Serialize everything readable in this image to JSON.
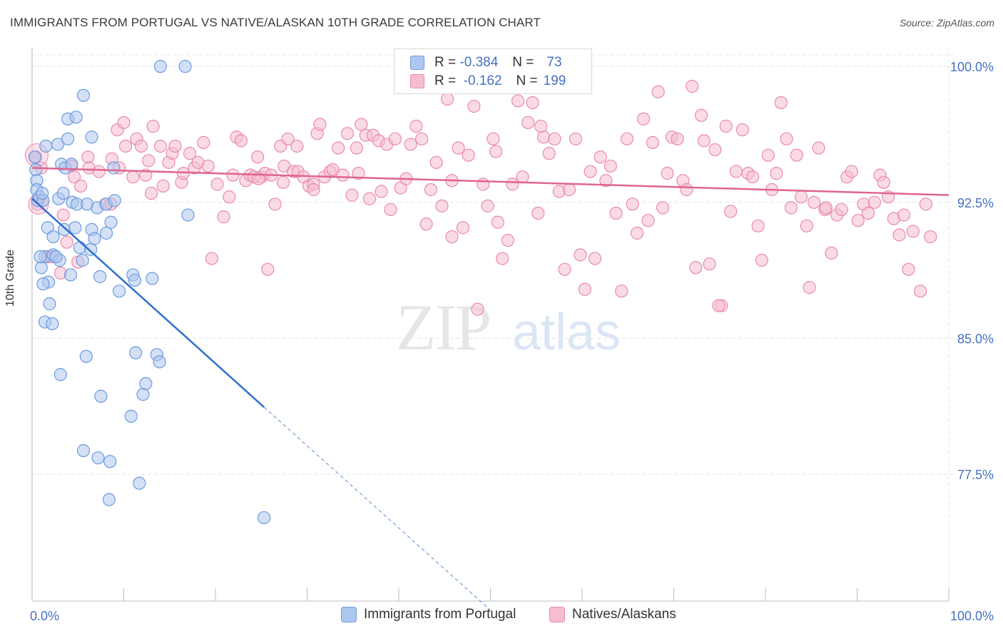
{
  "header": {
    "title": "IMMIGRANTS FROM PORTUGAL VS NATIVE/ALASKAN 10TH GRADE CORRELATION CHART",
    "source": "Source: ZipAtlas.com"
  },
  "watermark": {
    "zip": "ZIP",
    "atlas": "atlas"
  },
  "legend_top": {
    "rows": [
      {
        "r_label": "R =",
        "r_value": "-0.384",
        "n_label": "N =",
        "n_value": "73"
      },
      {
        "r_label": "R =",
        "r_value": "-0.162",
        "n_label": "N =",
        "n_value": "199"
      }
    ]
  },
  "colors": {
    "blue_fill": "#aec7ef",
    "blue_stroke": "#6b9be0",
    "blue_line": "#2f6fce",
    "pink_fill": "#f6bdd0",
    "pink_stroke": "#e98aab",
    "pink_line": "#e0648f",
    "axis_text": "#4472c4",
    "grid": "#e4e4e4"
  },
  "chart_data": {
    "type": "scatter",
    "title": "IMMIGRANTS FROM PORTUGAL VS NATIVE/ALASKAN 10TH GRADE CORRELATION CHART",
    "xlabel": "",
    "ylabel": "10th Grade",
    "xlim": [
      0,
      100
    ],
    "ylim": [
      70.5,
      101.5
    ],
    "x_tick_labels": [
      "0.0%",
      "100.0%"
    ],
    "y_ticks": [
      77.5,
      85.0,
      92.5,
      100.0
    ],
    "y_tick_labels": [
      "77.5%",
      "85.0%",
      "92.5%",
      "100.0%"
    ],
    "grid": true,
    "legend_placement": "bottom",
    "series": [
      {
        "name": "Immigrants from Portugal",
        "r": -0.384,
        "n": 73,
        "trend": {
          "x0": 0.0,
          "y0": 92.7,
          "x1": 25.3,
          "y1": 81.2,
          "dash_to_x": 50.0,
          "dash_to_y": 70.0
        },
        "points": [
          [
            0.3,
            95.0
          ],
          [
            0.4,
            94.3
          ],
          [
            0.5,
            93.7
          ],
          [
            0.5,
            93.2
          ],
          [
            0.6,
            92.6
          ],
          [
            0.8,
            92.8
          ],
          [
            1.0,
            88.9
          ],
          [
            1.2,
            92.6
          ],
          [
            1.4,
            89.5
          ],
          [
            1.4,
            85.9
          ],
          [
            1.5,
            95.6
          ],
          [
            1.7,
            91.1
          ],
          [
            1.8,
            88.1
          ],
          [
            1.9,
            86.9
          ],
          [
            2.2,
            85.8
          ],
          [
            2.3,
            89.6
          ],
          [
            2.3,
            90.6
          ],
          [
            2.8,
            95.7
          ],
          [
            2.9,
            92.7
          ],
          [
            3.0,
            89.3
          ],
          [
            3.1,
            83.0
          ],
          [
            3.2,
            94.6
          ],
          [
            3.4,
            93.0
          ],
          [
            3.5,
            91.0
          ],
          [
            3.6,
            94.4
          ],
          [
            3.9,
            96.0
          ],
          [
            3.9,
            97.1
          ],
          [
            4.2,
            88.5
          ],
          [
            4.3,
            94.6
          ],
          [
            4.4,
            92.5
          ],
          [
            4.7,
            91.1
          ],
          [
            4.8,
            97.2
          ],
          [
            4.9,
            92.4
          ],
          [
            5.2,
            90.0
          ],
          [
            5.5,
            89.3
          ],
          [
            5.6,
            98.4
          ],
          [
            5.6,
            78.8
          ],
          [
            5.9,
            84.0
          ],
          [
            6.0,
            92.4
          ],
          [
            6.4,
            89.9
          ],
          [
            6.5,
            96.1
          ],
          [
            6.5,
            91.0
          ],
          [
            6.8,
            90.5
          ],
          [
            7.1,
            92.2
          ],
          [
            7.2,
            78.4
          ],
          [
            7.4,
            88.4
          ],
          [
            7.5,
            81.8
          ],
          [
            8.1,
            92.4
          ],
          [
            8.1,
            90.8
          ],
          [
            8.4,
            76.1
          ],
          [
            8.5,
            78.2
          ],
          [
            8.6,
            91.4
          ],
          [
            8.9,
            94.4
          ],
          [
            9.0,
            92.6
          ],
          [
            9.5,
            87.6
          ],
          [
            10.8,
            80.7
          ],
          [
            11.0,
            88.5
          ],
          [
            11.2,
            88.2
          ],
          [
            11.3,
            84.2
          ],
          [
            11.7,
            77.0
          ],
          [
            12.1,
            81.9
          ],
          [
            12.4,
            82.5
          ],
          [
            13.1,
            88.3
          ],
          [
            13.6,
            84.1
          ],
          [
            13.9,
            83.7
          ],
          [
            14.0,
            100.0
          ],
          [
            16.7,
            100.0
          ],
          [
            17.0,
            91.8
          ],
          [
            25.3,
            75.1
          ],
          [
            1.2,
            88.0
          ],
          [
            0.9,
            89.5
          ],
          [
            2.6,
            89.5
          ],
          [
            1.1,
            93.0
          ]
        ]
      },
      {
        "name": "Natives/Alaskans",
        "r": -0.162,
        "n": 199,
        "trend": {
          "x0": 0.0,
          "y0": 94.4,
          "x1": 100.0,
          "y1": 92.9
        },
        "points": [
          [
            0.4,
            95.0
          ],
          [
            0.6,
            92.4
          ],
          [
            1.0,
            94.4
          ],
          [
            1.7,
            89.5
          ],
          [
            2.1,
            89.5
          ],
          [
            3.1,
            88.6
          ],
          [
            3.4,
            91.8
          ],
          [
            3.8,
            90.3
          ],
          [
            4.3,
            94.5
          ],
          [
            4.6,
            93.9
          ],
          [
            5.0,
            89.2
          ],
          [
            5.3,
            93.4
          ],
          [
            6.1,
            95.0
          ],
          [
            6.2,
            94.4
          ],
          [
            7.3,
            94.2
          ],
          [
            8.0,
            92.4
          ],
          [
            8.6,
            92.4
          ],
          [
            8.7,
            94.9
          ],
          [
            9.3,
            96.5
          ],
          [
            9.5,
            94.4
          ],
          [
            10.0,
            96.9
          ],
          [
            10.2,
            95.6
          ],
          [
            11.0,
            93.9
          ],
          [
            11.4,
            96.0
          ],
          [
            11.9,
            95.6
          ],
          [
            12.4,
            94.0
          ],
          [
            12.7,
            94.8
          ],
          [
            13.2,
            96.7
          ],
          [
            14.0,
            95.6
          ],
          [
            14.3,
            93.4
          ],
          [
            14.9,
            94.7
          ],
          [
            15.3,
            95.2
          ],
          [
            15.6,
            95.6
          ],
          [
            16.3,
            93.6
          ],
          [
            16.5,
            94.1
          ],
          [
            17.2,
            95.2
          ],
          [
            17.7,
            94.4
          ],
          [
            18.1,
            94.7
          ],
          [
            18.7,
            95.8
          ],
          [
            19.2,
            94.5
          ],
          [
            19.6,
            89.4
          ],
          [
            20.2,
            93.5
          ],
          [
            20.9,
            91.7
          ],
          [
            21.5,
            92.8
          ],
          [
            21.9,
            94.0
          ],
          [
            22.3,
            96.1
          ],
          [
            22.8,
            95.9
          ],
          [
            23.3,
            93.7
          ],
          [
            23.8,
            94.0
          ],
          [
            24.2,
            93.9
          ],
          [
            24.6,
            95.0
          ],
          [
            25.0,
            93.9
          ],
          [
            25.4,
            94.1
          ],
          [
            25.7,
            88.8
          ],
          [
            26.1,
            94.0
          ],
          [
            26.5,
            92.4
          ],
          [
            27.1,
            95.6
          ],
          [
            27.5,
            94.5
          ],
          [
            27.9,
            96.0
          ],
          [
            28.5,
            94.2
          ],
          [
            28.9,
            95.6
          ],
          [
            29.0,
            94.2
          ],
          [
            29.6,
            93.9
          ],
          [
            30.2,
            93.4
          ],
          [
            30.7,
            93.5
          ],
          [
            31.1,
            96.3
          ],
          [
            31.4,
            96.8
          ],
          [
            31.9,
            93.9
          ],
          [
            32.5,
            94.2
          ],
          [
            32.8,
            94.3
          ],
          [
            33.4,
            95.5
          ],
          [
            33.9,
            94.0
          ],
          [
            34.4,
            96.3
          ],
          [
            34.9,
            92.9
          ],
          [
            35.4,
            95.5
          ],
          [
            35.9,
            96.8
          ],
          [
            36.4,
            96.2
          ],
          [
            36.8,
            92.7
          ],
          [
            37.2,
            96.2
          ],
          [
            37.8,
            95.9
          ],
          [
            38.1,
            93.1
          ],
          [
            38.7,
            95.7
          ],
          [
            39.1,
            92.1
          ],
          [
            39.6,
            96.0
          ],
          [
            40.2,
            93.3
          ],
          [
            40.8,
            93.8
          ],
          [
            41.3,
            95.7
          ],
          [
            41.9,
            96.7
          ],
          [
            42.5,
            96.0
          ],
          [
            43.0,
            91.3
          ],
          [
            43.5,
            93.2
          ],
          [
            44.1,
            94.7
          ],
          [
            44.7,
            92.3
          ],
          [
            45.3,
            98.2
          ],
          [
            45.8,
            93.7
          ],
          [
            46.5,
            95.5
          ],
          [
            47.0,
            91.1
          ],
          [
            47.6,
            95.1
          ],
          [
            48.2,
            97.8
          ],
          [
            48.6,
            86.6
          ],
          [
            49.2,
            93.5
          ],
          [
            49.7,
            92.3
          ],
          [
            50.3,
            96.0
          ],
          [
            50.8,
            91.4
          ],
          [
            51.3,
            89.4
          ],
          [
            51.9,
            90.4
          ],
          [
            52.4,
            93.5
          ],
          [
            53.0,
            98.1
          ],
          [
            53.5,
            93.9
          ],
          [
            54.1,
            96.9
          ],
          [
            54.6,
            98.0
          ],
          [
            55.2,
            91.9
          ],
          [
            55.8,
            96.1
          ],
          [
            56.4,
            95.2
          ],
          [
            57.0,
            96.0
          ],
          [
            57.5,
            93.1
          ],
          [
            58.1,
            88.8
          ],
          [
            58.6,
            93.2
          ],
          [
            59.3,
            96.0
          ],
          [
            59.8,
            89.6
          ],
          [
            60.3,
            87.7
          ],
          [
            60.9,
            94.2
          ],
          [
            61.4,
            89.4
          ],
          [
            62.0,
            95.0
          ],
          [
            62.6,
            93.7
          ],
          [
            63.1,
            94.5
          ],
          [
            63.7,
            91.9
          ],
          [
            64.3,
            87.6
          ],
          [
            64.9,
            96.0
          ],
          [
            65.5,
            92.4
          ],
          [
            66.0,
            90.8
          ],
          [
            66.7,
            97.1
          ],
          [
            67.2,
            91.5
          ],
          [
            67.7,
            95.8
          ],
          [
            68.3,
            98.6
          ],
          [
            68.8,
            92.2
          ],
          [
            69.3,
            94.1
          ],
          [
            69.8,
            96.1
          ],
          [
            70.4,
            96.0
          ],
          [
            71.0,
            93.7
          ],
          [
            71.4,
            93.2
          ],
          [
            72.0,
            98.9
          ],
          [
            72.4,
            88.9
          ],
          [
            73.0,
            97.3
          ],
          [
            73.3,
            95.9
          ],
          [
            73.9,
            89.1
          ],
          [
            74.5,
            95.4
          ],
          [
            75.2,
            86.8
          ],
          [
            75.7,
            96.7
          ],
          [
            76.2,
            92.0
          ],
          [
            76.8,
            94.2
          ],
          [
            77.5,
            96.5
          ],
          [
            78.1,
            94.1
          ],
          [
            78.6,
            93.9
          ],
          [
            79.2,
            91.2
          ],
          [
            79.6,
            89.3
          ],
          [
            80.3,
            95.1
          ],
          [
            80.7,
            93.2
          ],
          [
            81.2,
            94.1
          ],
          [
            81.7,
            98.0
          ],
          [
            82.3,
            96.0
          ],
          [
            82.8,
            92.2
          ],
          [
            83.4,
            95.1
          ],
          [
            83.9,
            92.8
          ],
          [
            84.5,
            91.2
          ],
          [
            84.8,
            87.8
          ],
          [
            85.3,
            92.5
          ],
          [
            85.8,
            95.5
          ],
          [
            86.5,
            92.1
          ],
          [
            87.2,
            89.7
          ],
          [
            87.8,
            91.8
          ],
          [
            88.3,
            92.1
          ],
          [
            88.9,
            93.9
          ],
          [
            89.4,
            94.2
          ],
          [
            90.1,
            91.5
          ],
          [
            90.7,
            92.4
          ],
          [
            91.2,
            91.9
          ],
          [
            91.9,
            92.5
          ],
          [
            92.5,
            94.0
          ],
          [
            92.9,
            93.6
          ],
          [
            93.4,
            92.8
          ],
          [
            94.0,
            91.6
          ],
          [
            94.6,
            90.7
          ],
          [
            95.1,
            91.8
          ],
          [
            95.6,
            88.8
          ],
          [
            96.1,
            90.9
          ],
          [
            96.9,
            87.6
          ],
          [
            97.5,
            92.4
          ],
          [
            98.0,
            90.6
          ],
          [
            45.8,
            90.6
          ],
          [
            27.4,
            93.6
          ],
          [
            30.7,
            93.2
          ],
          [
            13.0,
            93.0
          ],
          [
            55.5,
            96.7
          ],
          [
            74.9,
            86.8
          ],
          [
            86.6,
            92.2
          ],
          [
            35.6,
            94.1
          ],
          [
            24.7,
            93.8
          ],
          [
            50.6,
            95.3
          ]
        ]
      }
    ]
  }
}
